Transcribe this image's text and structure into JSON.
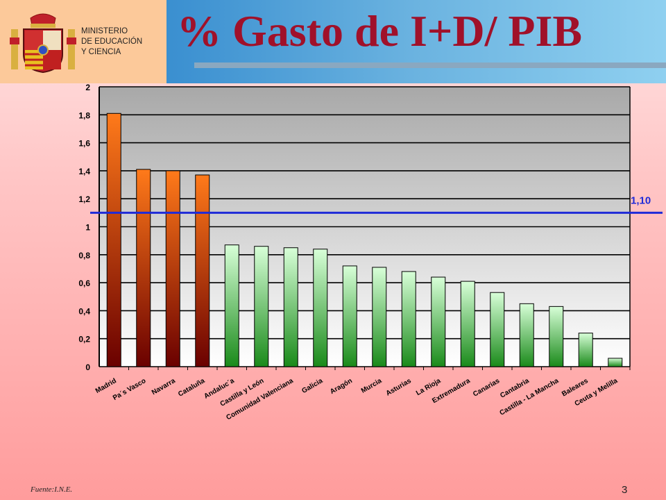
{
  "header": {
    "title": "% Gasto de I+D/ PIB",
    "ministry_lines": [
      "MINISTERIO",
      "DE EDUCACIÓN",
      "Y CIENCIA"
    ]
  },
  "footer": {
    "source": "Fuente:I.N.E.",
    "page_number": "3"
  },
  "colors": {
    "orange_top": "#ff7a1a",
    "orange_bottom": "#6a0000",
    "green_top": "#d8ffd8",
    "green_bottom": "#1a8a1a",
    "reference_line": "#1f2bd8",
    "reference_label": "#1f2bd8",
    "title": "#a0112a",
    "logo_box": "#fcc99a"
  },
  "chart_data": {
    "type": "bar",
    "title": "",
    "xlabel": "",
    "ylabel": "",
    "ylim": [
      0,
      2
    ],
    "yticks": [
      "0",
      "0,2",
      "0,4",
      "0,6",
      "0,8",
      "1",
      "1,2",
      "1,4",
      "1,6",
      "1,8",
      "2"
    ],
    "grid": true,
    "categories": [
      "Madrid",
      "Pa´s Vasco",
      "Navarra",
      "Cataluña",
      "Andaluc´a",
      "Castilla y León",
      "Comunidad Valenciana",
      "Galicia",
      "Aragón",
      "Murcia",
      "Asturias",
      "La Rioja",
      "Extremadura",
      "Canarias",
      "Cantabria",
      "Castilla - La Mancha",
      "Baleares",
      "Ceuta y Melilla"
    ],
    "values": [
      1.81,
      1.41,
      1.4,
      1.37,
      0.87,
      0.86,
      0.85,
      0.84,
      0.72,
      0.71,
      0.68,
      0.64,
      0.61,
      0.53,
      0.45,
      0.43,
      0.24,
      0.06
    ],
    "highlighted_count": 4,
    "reference": {
      "value": 1.1,
      "label": "1,10"
    }
  }
}
